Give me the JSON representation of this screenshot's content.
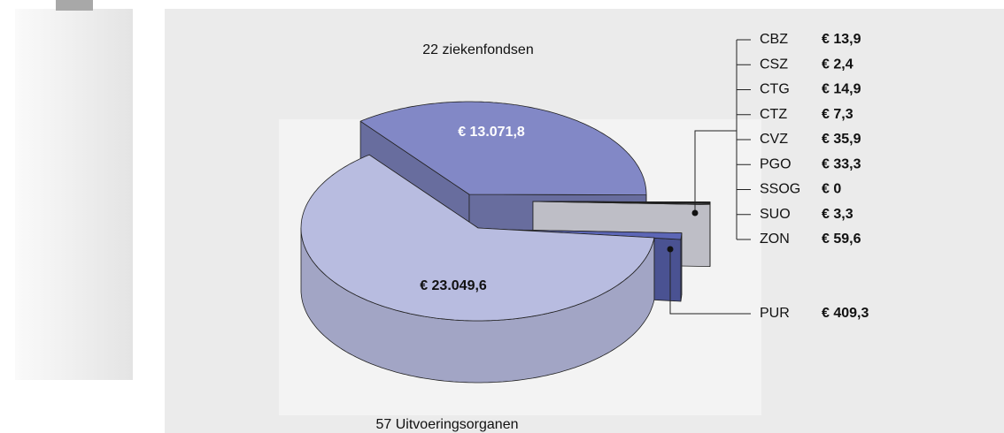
{
  "chart_data": {
    "type": "pie",
    "categories": [
      "57 Uitvoeringsorganen",
      "22 ziekenfondsen",
      "CBZ",
      "CSZ",
      "CTG",
      "CTZ",
      "CVZ",
      "PGO",
      "SSOG",
      "SUO",
      "ZON",
      "PUR"
    ],
    "values": [
      23049.6,
      13071.8,
      13.9,
      2.4,
      14.9,
      7.3,
      35.9,
      33.3,
      0,
      3.3,
      59.6,
      409.3
    ],
    "value_labels": [
      "€ 23.049,6",
      "€ 13.071,8",
      "€ 13,9",
      "€ 2,4",
      "€ 14,9",
      "€ 7,3",
      "€ 35,9",
      "€ 33,3",
      "€ 0",
      "€ 3,3",
      "€ 59,6",
      "€ 409,3"
    ],
    "colors": [
      "#b8bce0",
      "#8288c6",
      "#eeeef8",
      "#eeeef8",
      "#eeeef8",
      "#eeeef8",
      "#eeeef8",
      "#eeeef8",
      "#eeeef8",
      "#eeeef8",
      "#eeeef8",
      "#5c66b6"
    ]
  }
}
